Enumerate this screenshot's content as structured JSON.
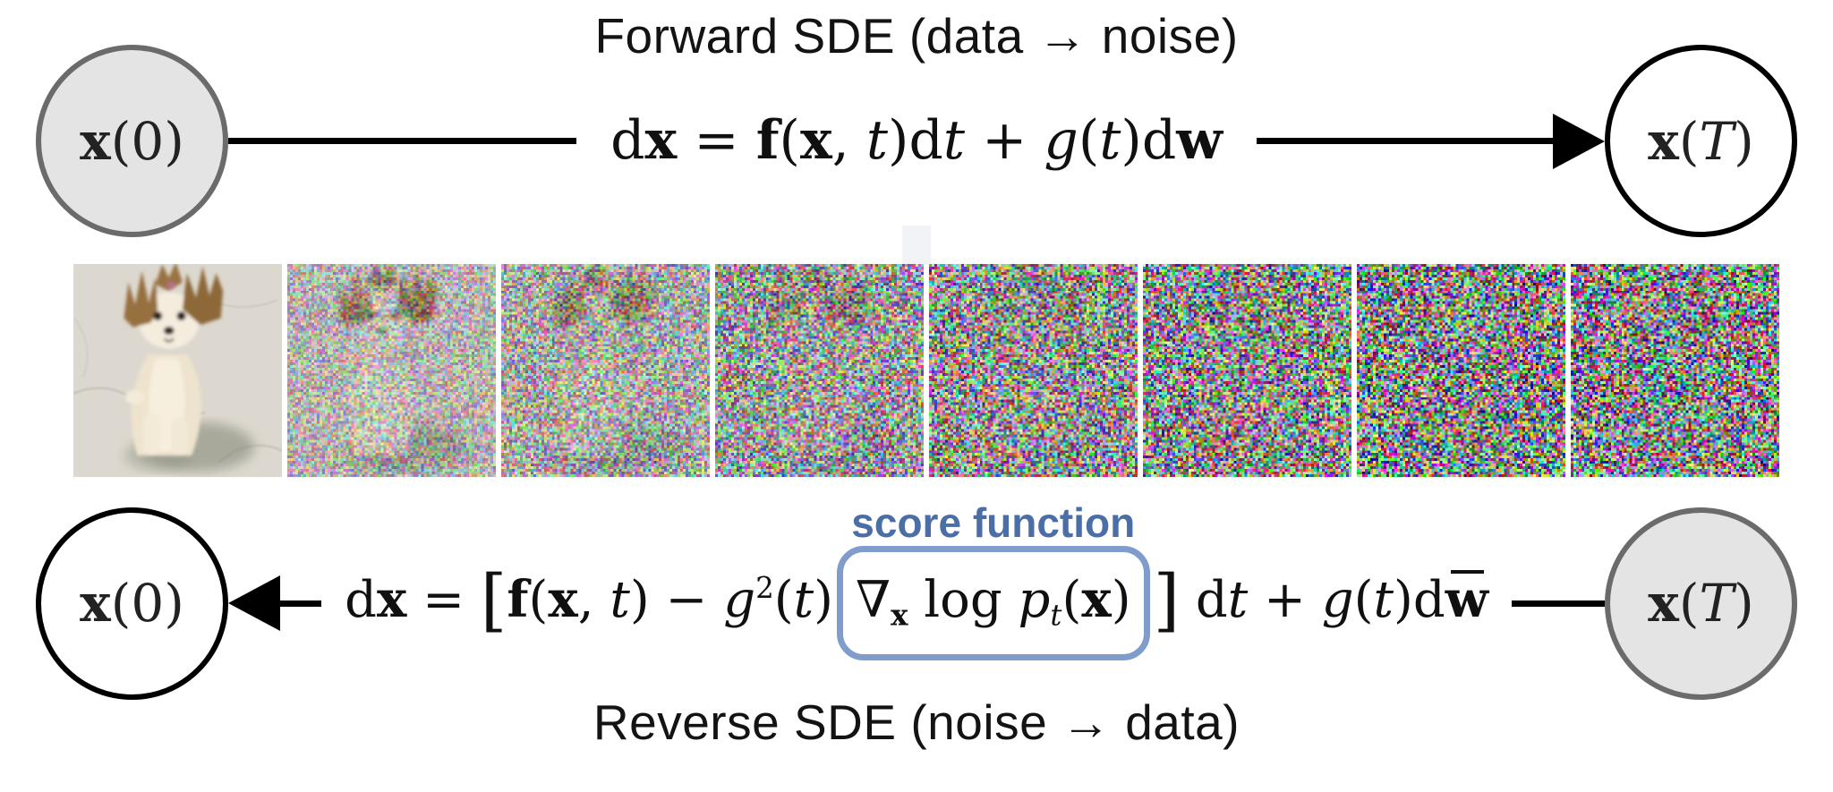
{
  "forward": {
    "title": "Forward SDE (data → noise)",
    "equation": [
      {
        "t": "d",
        "s": "rm"
      },
      {
        "t": "x",
        "s": "bf"
      },
      {
        "t": " = ",
        "s": "rm"
      },
      {
        "t": "f",
        "s": "bf"
      },
      {
        "t": "(",
        "s": "rm"
      },
      {
        "t": "x",
        "s": "bf"
      },
      {
        "t": ", ",
        "s": "rm"
      },
      {
        "t": "t",
        "s": "it"
      },
      {
        "t": ")",
        "s": "rm"
      },
      {
        "t": "d",
        "s": "rm"
      },
      {
        "t": "t",
        "s": "it"
      },
      {
        "t": " + ",
        "s": "rm"
      },
      {
        "t": "g",
        "s": "it"
      },
      {
        "t": "(",
        "s": "rm"
      },
      {
        "t": "t",
        "s": "it"
      },
      {
        "t": ")",
        "s": "rm"
      },
      {
        "t": "d",
        "s": "rm"
      },
      {
        "t": "w",
        "s": "bf"
      }
    ]
  },
  "reverse": {
    "title": "Reverse SDE (noise → data)",
    "score_label": "score function",
    "eq_before": [
      {
        "t": "d",
        "s": "rm"
      },
      {
        "t": "x",
        "s": "bf"
      },
      {
        "t": " = ",
        "s": "rm"
      },
      {
        "t": "[",
        "s": "big"
      },
      {
        "t": "f",
        "s": "bf"
      },
      {
        "t": "(",
        "s": "rm"
      },
      {
        "t": "x",
        "s": "bf"
      },
      {
        "t": ", ",
        "s": "rm"
      },
      {
        "t": "t",
        "s": "it"
      },
      {
        "t": ")",
        "s": "rm"
      },
      {
        "t": " − ",
        "s": "rm"
      },
      {
        "t": "g",
        "s": "it"
      },
      {
        "t": "2",
        "s": "sup"
      },
      {
        "t": "(",
        "s": "rm"
      },
      {
        "t": "t",
        "s": "it"
      },
      {
        "t": ")",
        "s": "rm"
      }
    ],
    "eq_box": [
      {
        "t": "∇",
        "s": "rm"
      },
      {
        "t": "x",
        "s": "sub bf"
      },
      {
        "t": " log ",
        "s": "rm"
      },
      {
        "t": "p",
        "s": "it"
      },
      {
        "t": "t",
        "s": "sub it"
      },
      {
        "t": "(",
        "s": "rm"
      },
      {
        "t": "x",
        "s": "bf"
      },
      {
        "t": ")",
        "s": "rm"
      }
    ],
    "eq_after": [
      {
        "t": "]",
        "s": "big"
      },
      {
        "t": " d",
        "s": "rm"
      },
      {
        "t": "t",
        "s": "it"
      },
      {
        "t": " + ",
        "s": "rm"
      },
      {
        "t": "g",
        "s": "it"
      },
      {
        "t": "(",
        "s": "rm"
      },
      {
        "t": "t",
        "s": "it"
      },
      {
        "t": ")",
        "s": "rm"
      },
      {
        "t": "d",
        "s": "rm"
      },
      {
        "t": "w",
        "s": "bf bar"
      }
    ]
  },
  "nodes": {
    "x0": [
      {
        "t": "x",
        "s": "bf"
      },
      {
        "t": "(0)",
        "s": "rm"
      }
    ],
    "xT": [
      {
        "t": "x",
        "s": "bf"
      },
      {
        "t": "(",
        "s": "rm"
      },
      {
        "t": "T",
        "s": "it"
      },
      {
        "t": ")",
        "s": "rm"
      }
    ]
  },
  "strip": {
    "frames": 8,
    "noise_levels": [
      0,
      0.45,
      0.6,
      0.75,
      0.86,
      0.94,
      1,
      1
    ],
    "alt": "photo of a small terrier puppy progressively corrupted into pure multicolored noise"
  },
  "colors": {
    "score_text": "#4b6ea6",
    "score_box_border": "#7f9ccd",
    "node_fill_gray": "#e4e4e4",
    "node_border_gray": "#6b6b6b",
    "node_border_black": "#000000",
    "arrow_black": "#000000"
  }
}
